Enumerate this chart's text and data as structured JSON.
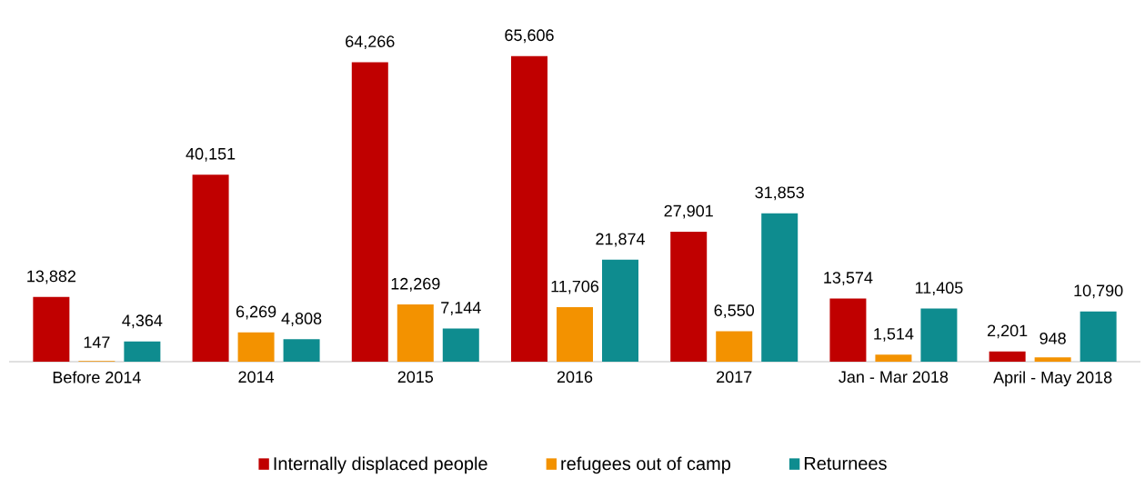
{
  "chart_data": {
    "type": "bar",
    "categories": [
      "Before 2014",
      "2014",
      "2015",
      "2016",
      "2017",
      "Jan - Mar 2018",
      "April - May 2018"
    ],
    "series": [
      {
        "name": "Internally displaced people",
        "color": "#c00000",
        "values": [
          13882,
          40151,
          64266,
          65606,
          27901,
          13574,
          2201
        ],
        "value_labels": [
          "13,882",
          "40,151",
          "64,266",
          "65,606",
          "27,901",
          "13,574",
          "2,201"
        ]
      },
      {
        "name": "refugees out of camp",
        "color": "#f39200",
        "values": [
          147,
          6269,
          12269,
          11706,
          6550,
          1514,
          948
        ],
        "value_labels": [
          "147",
          "6,269",
          "12,269",
          "11,706",
          "6,550",
          "1,514",
          "948"
        ]
      },
      {
        "name": "Returnees",
        "color": "#0e8c8f",
        "values": [
          4364,
          4808,
          7144,
          21874,
          31853,
          11405,
          10790
        ],
        "value_labels": [
          "4,364",
          "4,808",
          "7,144",
          "21,874",
          "31,853",
          "11,405",
          "10,790"
        ]
      }
    ],
    "legend": "bottom"
  }
}
